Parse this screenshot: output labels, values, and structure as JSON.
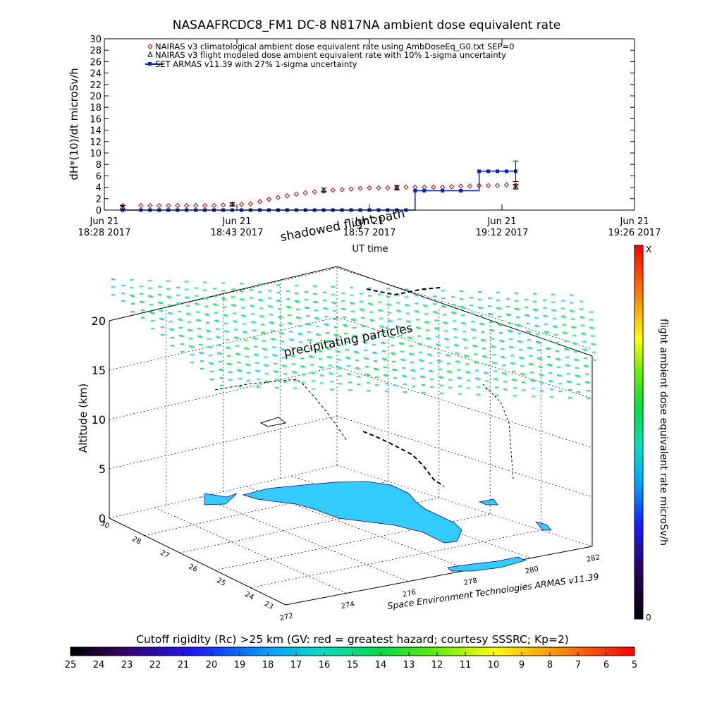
{
  "chart_data": [
    {
      "type": "line",
      "title": "NASAAFRCDC8_FM1 DC-8    N817NA ambient dose equivalent rate",
      "ylabel": "dH*(10)/dt microSv/h",
      "xlabel": "UT time",
      "ylim": [
        0,
        30
      ],
      "yticks": [
        "0",
        "2",
        "4",
        "6",
        "8",
        "10",
        "12",
        "14",
        "16",
        "18",
        "20",
        "22",
        "24",
        "26",
        "28",
        "30"
      ],
      "xticks": [
        {
          "date": "Jun 21",
          "time": "18:28 2017"
        },
        {
          "date": "Jun 21",
          "time": "18:43 2017"
        },
        {
          "date": "Jun 21",
          "time": "18:57 2017"
        },
        {
          "date": "Jun 21",
          "time": "19:12 2017"
        },
        {
          "date": "Jun 21",
          "time": "19:26 2017"
        }
      ],
      "legend": [
        "NAIRAS v3 climatological ambient dose equivalent rate using AmbDoseEq_G0.txt SEP=0",
        "NAIRAS v3 flight modeled dose ambient equivalent rate with 10% 1-sigma uncertainty",
        "SET ARMAS v11.39 with 27% 1-sigma uncertainty"
      ],
      "series": [
        {
          "marker": "open diamond",
          "color": "#cc0000",
          "x": [
            "18:30",
            "18:32",
            "18:33",
            "18:34",
            "18:35",
            "18:36",
            "18:37",
            "18:38",
            "18:39",
            "18:40",
            "18:41",
            "18:42",
            "18:43",
            "18:44",
            "18:45",
            "18:46",
            "18:47",
            "18:48",
            "18:49",
            "18:50",
            "18:51",
            "18:52",
            "18:53",
            "18:54",
            "18:55",
            "18:56",
            "18:57",
            "18:58",
            "18:59",
            "19:00",
            "19:01",
            "19:02",
            "19:03",
            "19:04",
            "19:05",
            "19:06",
            "19:07",
            "19:08",
            "19:09",
            "19:10",
            "19:11",
            "19:12",
            "19:13"
          ],
          "y": [
            0.8,
            0.8,
            0.8,
            0.8,
            0.8,
            0.8,
            0.8,
            0.8,
            0.8,
            0.8,
            0.9,
            1.0,
            1.0,
            1.1,
            1.5,
            1.9,
            2.2,
            2.5,
            2.8,
            3.0,
            3.2,
            3.3,
            3.5,
            3.6,
            3.7,
            3.8,
            3.9,
            3.9,
            3.9,
            4.0,
            4.0,
            4.0,
            4.0,
            4.0,
            4.0,
            4.1,
            4.2,
            4.2,
            4.3,
            4.3,
            4.3,
            4.4,
            4.4
          ]
        },
        {
          "marker": "open triangle with error bar",
          "color": "#000000",
          "x": [
            "18:30",
            "18:42",
            "18:52",
            "19:00",
            "19:13"
          ],
          "y": [
            0.5,
            1.0,
            3.5,
            3.9,
            4.1
          ],
          "err": [
            0.05,
            0.1,
            0.35,
            0.4,
            0.41
          ]
        },
        {
          "marker": "filled square with error bar",
          "color": "#0022cc",
          "x": [
            "18:30",
            "18:32",
            "18:33",
            "18:34",
            "18:35",
            "18:36",
            "18:37",
            "18:38",
            "18:39",
            "18:40",
            "18:41",
            "18:42",
            "18:43",
            "18:44",
            "18:45",
            "18:46",
            "18:47",
            "18:48",
            "18:49",
            "18:50",
            "18:51",
            "18:52",
            "18:53",
            "18:54",
            "18:55",
            "18:56",
            "18:57",
            "18:58",
            "18:59",
            "19:00",
            "19:01",
            "19:02",
            "19:03",
            "19:05",
            "19:07",
            "19:09",
            "19:10",
            "19:11",
            "19:12",
            "19:13"
          ],
          "y": [
            0,
            0,
            0,
            0,
            0,
            0,
            0,
            0,
            0,
            0,
            0,
            0,
            0,
            0,
            0,
            0,
            0,
            0,
            0,
            0,
            0,
            0,
            0,
            0,
            0,
            0,
            0,
            0,
            0,
            0,
            0,
            3.4,
            3.4,
            3.4,
            3.4,
            6.8,
            6.8,
            6.8,
            6.8,
            6.8
          ],
          "err_last": 1.8
        }
      ]
    },
    {
      "type": "scatter",
      "title": "",
      "zlabel": "Altitude (km)",
      "zlim": [
        0,
        20
      ],
      "zticks": [
        "0",
        "5",
        "10",
        "15",
        "20"
      ],
      "lat_ticks": [
        "23",
        "24",
        "25",
        "26",
        "27",
        "28",
        "30"
      ],
      "lon_ticks": [
        "272",
        "274",
        "276",
        "278",
        "280",
        "282"
      ],
      "annotations": [
        "shadowed flight path",
        "precipitating particles"
      ],
      "footer": "Space Environment Technologies ARMAS v11.39",
      "land_color": "#33ccff",
      "particle_color": "#22ee66"
    },
    {
      "type": "heatmap",
      "colorbar_vertical": {
        "label": "flight ambient dose equivalent rate microSv/h",
        "top": "X",
        "bottom": "0"
      },
      "colorbar_horizontal": {
        "label": "Cutoff rigidity (Rc) >25 km (GV: red = greatest hazard; courtesy SSSRC; Kp=2)",
        "ticks": [
          "25",
          "24",
          "23",
          "22",
          "21",
          "20",
          "19",
          "18",
          "17",
          "16",
          "15",
          "14",
          "13",
          "12",
          "11",
          "10",
          "9",
          "8",
          "7",
          "6",
          "5"
        ]
      }
    }
  ]
}
